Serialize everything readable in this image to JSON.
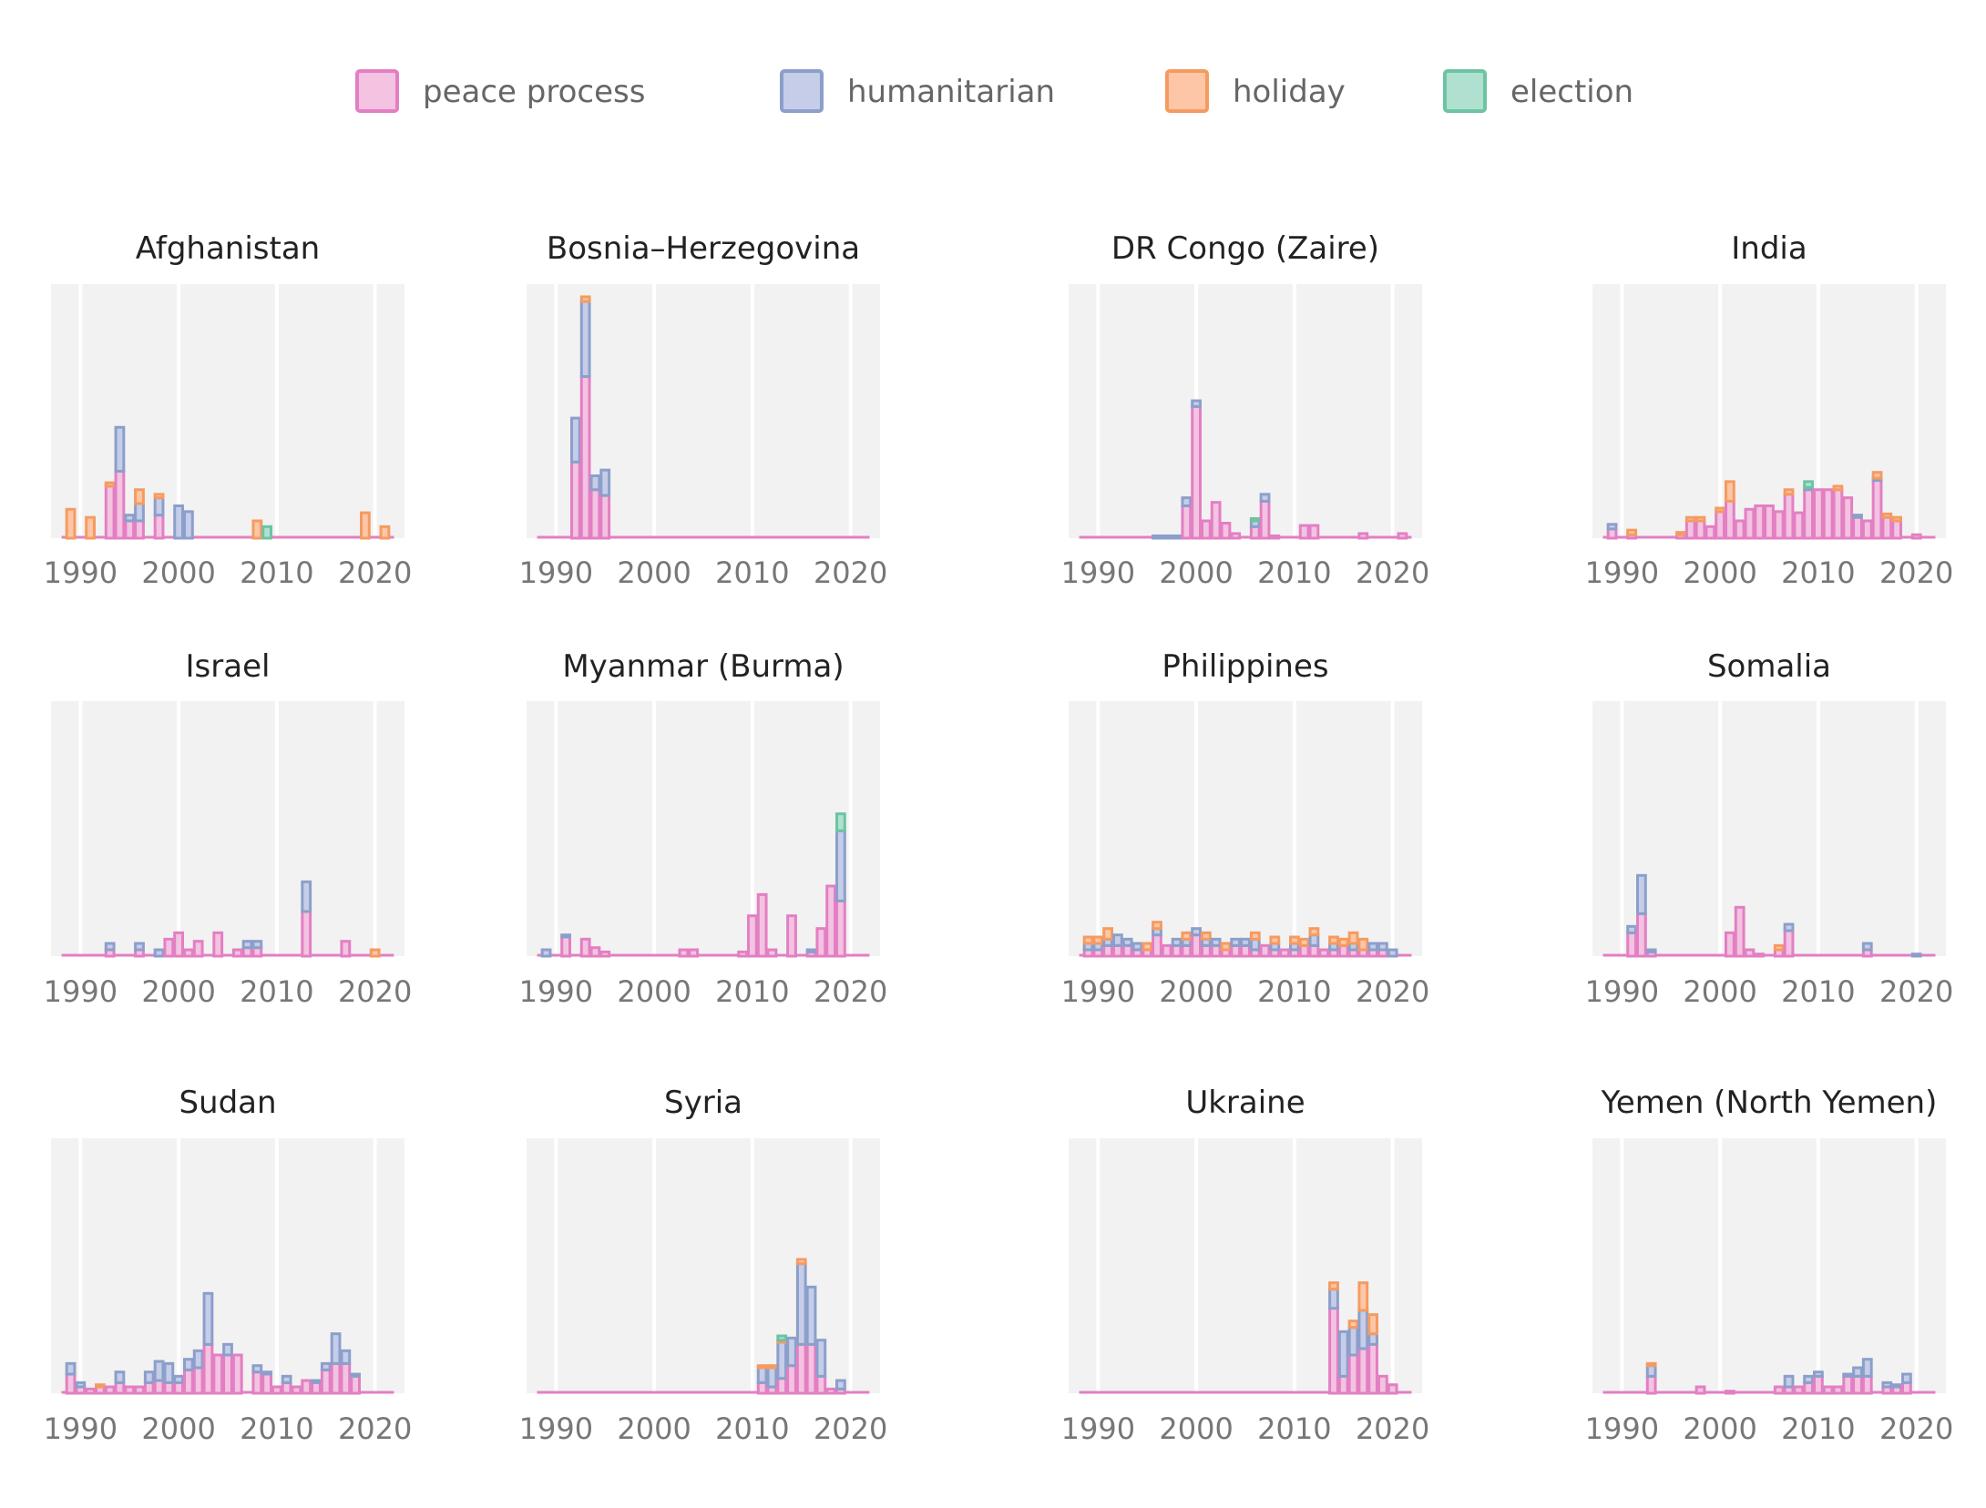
{
  "colors": {
    "peace process": {
      "fill": "#f3c3e1",
      "stroke": "#e37fc3"
    },
    "humanitarian": {
      "fill": "#c5cde8",
      "stroke": "#8c9fcb"
    },
    "holiday": {
      "fill": "#fdc6a6",
      "stroke": "#f59b61"
    },
    "election": {
      "fill": "#b0e0d0",
      "stroke": "#6cc4a2"
    },
    "panel_background": "#f2f2f2",
    "gridline": "#ffffff"
  },
  "chart_data": {
    "type": "bar",
    "stacked": true,
    "legend": {
      "placement": "top",
      "entries": [
        "peace process",
        "humanitarian",
        "holiday",
        "election"
      ]
    },
    "stack_order": [
      "peace process",
      "humanitarian",
      "holiday",
      "election"
    ],
    "x_ticks": [
      "1990",
      "2000",
      "2010",
      "2020"
    ],
    "xlim": [
      1987,
      2023
    ],
    "y_scale": "free per row",
    "grid": true,
    "panels": [
      {
        "title": "Afghanistan",
        "row": 0,
        "col": 0,
        "ymax": 22,
        "peace process": {
          "1993": 4.5,
          "1994": 5.8,
          "1995": 1.5,
          "1996": 1.5,
          "1998": 2
        },
        "humanitarian": {
          "1994": 3.8,
          "1995": 0.5,
          "1996": 1.5,
          "1998": 1.5,
          "2000": 2.8,
          "2001": 2.3
        },
        "holiday": {
          "1989": 2.5,
          "1991": 1.8,
          "1993": 0.3,
          "1996": 1.2,
          "1998": 0.3,
          "2008": 1.5,
          "2019": 2.2,
          "2021": 1
        },
        "election": {
          "2009": 1
        }
      },
      {
        "title": "Bosnia–Herzegovina",
        "row": 0,
        "col": 1,
        "ymax": 22,
        "peace process": {
          "1992": 6.6,
          "1993": 14,
          "1994": 4.2,
          "1995": 3.7
        },
        "humanitarian": {
          "1992": 3.8,
          "1993": 6.5,
          "1994": 1.2,
          "1995": 2.2
        },
        "holiday": {
          "1993": 0.4
        }
      },
      {
        "title": "DR Congo (Zaire)",
        "row": 0,
        "col": 2,
        "ymax": 22,
        "peace process": {
          "1999": 2.8,
          "2000": 11.4,
          "2001": 1.5,
          "2002": 3.1,
          "2003": 1.3,
          "2004": 0.4,
          "2006": 1,
          "2007": 3.2,
          "2008": 0.2,
          "2011": 1.1,
          "2012": 1.1,
          "2017": 0.4,
          "2021": 0.4
        },
        "humanitarian": {
          "1996": 0.2,
          "1997": 0.2,
          "1998": 0.2,
          "1999": 0.7,
          "2000": 0.5,
          "2006": 0.5,
          "2007": 0.6
        },
        "election": {
          "2006": 0.2
        }
      },
      {
        "title": "India",
        "row": 0,
        "col": 3,
        "ymax": 22,
        "peace process": {
          "1989": 0.8,
          "1991": 0.3,
          "1996": 0.3,
          "1997": 1.5,
          "1998": 1.5,
          "1999": 1,
          "2000": 2.3,
          "2001": 3.2,
          "2002": 1.5,
          "2003": 2.5,
          "2004": 2.8,
          "2005": 2.8,
          "2006": 2.3,
          "2007": 3.8,
          "2008": 2.2,
          "2009": 4.2,
          "2010": 4.2,
          "2011": 4.2,
          "2012": 4.2,
          "2013": 3.5,
          "2014": 1.8,
          "2015": 1.5,
          "2016": 5,
          "2017": 1.8,
          "2018": 1.5,
          "2020": 0.3
        },
        "humanitarian": {
          "1989": 0.4,
          "2009": 0.2,
          "2014": 0.2,
          "2016": 0.2
        },
        "holiday": {
          "1991": 0.4,
          "1996": 0.2,
          "1997": 0.3,
          "1998": 0.3,
          "2000": 0.3,
          "2001": 1.7,
          "2007": 0.4,
          "2012": 0.3,
          "2016": 0.5,
          "2017": 0.3,
          "2018": 0.3
        },
        "election": {
          "2009": 0.5
        }
      },
      {
        "title": "Israel",
        "row": 1,
        "col": 0,
        "ymax": 12,
        "peace process": {
          "1993": 0.3,
          "1996": 0.3,
          "1999": 0.8,
          "2000": 1.1,
          "2001": 0.3,
          "2002": 0.7,
          "2004": 1.1,
          "2006": 0.3,
          "2007": 0.4,
          "2008": 0.4,
          "2013": 2.1,
          "2017": 0.7
        },
        "humanitarian": {
          "1993": 0.3,
          "1996": 0.3,
          "1998": 0.3,
          "2007": 0.3,
          "2008": 0.3,
          "2013": 1.4
        },
        "holiday": {
          "2020": 0.3
        }
      },
      {
        "title": "Myanmar (Burma)",
        "row": 1,
        "col": 1,
        "ymax": 12,
        "peace process": {
          "1991": 0.9,
          "1993": 0.8,
          "1994": 0.4,
          "1995": 0.2,
          "2003": 0.3,
          "2004": 0.3,
          "2009": 0.2,
          "2010": 1.9,
          "2011": 2.9,
          "2012": 0.3,
          "2014": 1.9,
          "2016": 0.2,
          "2017": 1.3,
          "2018": 3.3,
          "2019": 2.6
        },
        "humanitarian": {
          "1989": 0.3,
          "1991": 0.1,
          "2016": 0.1,
          "2019": 3.3
        },
        "election": {
          "2019": 0.8
        }
      },
      {
        "title": "Philippines",
        "row": 1,
        "col": 2,
        "ymax": 12,
        "peace process": {
          "1989": 0.3,
          "1990": 0.3,
          "1991": 0.5,
          "1992": 0.5,
          "1993": 0.5,
          "1994": 0.3,
          "1995": 0.3,
          "1996": 1,
          "1997": 0.5,
          "1998": 0.5,
          "1999": 0.5,
          "2000": 1,
          "2001": 0.5,
          "2002": 0.5,
          "2003": 0.3,
          "2004": 0.5,
          "2005": 0.5,
          "2006": 0.3,
          "2007": 0.5,
          "2008": 0.3,
          "2009": 0.3,
          "2010": 0.3,
          "2011": 0.5,
          "2012": 0.5,
          "2013": 0.3,
          "2014": 0.3,
          "2015": 0.5,
          "2016": 0.3,
          "2017": 0.3,
          "2018": 0.3,
          "2019": 0.3
        },
        "humanitarian": {
          "1989": 0.3,
          "1990": 0.3,
          "1991": 0.3,
          "1992": 0.5,
          "1993": 0.3,
          "1994": 0.3,
          "1996": 0.3,
          "1998": 0.3,
          "1999": 0.3,
          "2000": 0.3,
          "2001": 0.3,
          "2002": 0.3,
          "2004": 0.3,
          "2005": 0.3,
          "2006": 0.5,
          "2008": 0.3,
          "2010": 0.3,
          "2012": 0.5,
          "2014": 0.3,
          "2016": 0.3,
          "2018": 0.3,
          "2019": 0.3,
          "2020": 0.3
        },
        "holiday": {
          "1989": 0.3,
          "1990": 0.3,
          "1991": 0.5,
          "1995": 0.3,
          "1996": 0.3,
          "1999": 0.3,
          "2001": 0.3,
          "2003": 0.3,
          "2006": 0.3,
          "2008": 0.3,
          "2010": 0.3,
          "2011": 0.3,
          "2012": 0.3,
          "2014": 0.3,
          "2015": 0.3,
          "2016": 0.5,
          "2017": 0.5
        }
      },
      {
        "title": "Somalia",
        "row": 1,
        "col": 3,
        "ymax": 12,
        "peace process": {
          "1991": 1.1,
          "1992": 2,
          "1993": 0.2,
          "2001": 1.1,
          "2002": 2.3,
          "2003": 0.3,
          "2004": 0.1,
          "2006": 0.3,
          "2007": 1.2,
          "2015": 0.3
        },
        "humanitarian": {
          "1991": 0.3,
          "1992": 1.8,
          "1993": 0.1,
          "2007": 0.3,
          "2015": 0.3,
          "2020": 0.1
        },
        "holiday": {
          "2006": 0.2
        }
      },
      {
        "title": "Sudan",
        "row": 2,
        "col": 0,
        "ymax": 12,
        "peace process": {
          "1989": 0.9,
          "1990": 0.3,
          "1991": 0.2,
          "1992": 0.3,
          "1993": 0.3,
          "1994": 0.5,
          "1995": 0.3,
          "1996": 0.3,
          "1997": 0.5,
          "1998": 0.6,
          "1999": 0.5,
          "2000": 0.5,
          "2001": 1.1,
          "2002": 1.2,
          "2003": 2.3,
          "2004": 1.8,
          "2005": 1.8,
          "2006": 1.8,
          "2008": 1,
          "2009": 0.9,
          "2010": 0.3,
          "2011": 0.5,
          "2012": 0.3,
          "2013": 0.6,
          "2014": 0.5,
          "2015": 1.1,
          "2016": 1.4,
          "2017": 1.4,
          "2018": 0.8
        },
        "humanitarian": {
          "1989": 0.5,
          "1990": 0.2,
          "1994": 0.5,
          "1997": 0.5,
          "1998": 0.9,
          "1999": 0.9,
          "2000": 0.3,
          "2001": 0.5,
          "2002": 0.8,
          "2003": 2.4,
          "2005": 0.5,
          "2008": 0.3,
          "2009": 0.1,
          "2011": 0.3,
          "2014": 0.1,
          "2015": 0.3,
          "2016": 1.4,
          "2017": 0.6,
          "2018": 0.1
        },
        "holiday": {
          "1992": 0.1
        }
      },
      {
        "title": "Syria",
        "row": 2,
        "col": 1,
        "ymax": 12,
        "peace process": {
          "2011": 0.5,
          "2012": 0.3,
          "2013": 0.7,
          "2014": 1.3,
          "2015": 2.3,
          "2016": 2.3,
          "2017": 0.8,
          "2018": 0.2,
          "2019": 0.2
        },
        "humanitarian": {
          "2011": 0.7,
          "2012": 0.9,
          "2013": 1.7,
          "2014": 1.3,
          "2015": 3.8,
          "2016": 2.7,
          "2017": 1.7,
          "2019": 0.4
        },
        "holiday": {
          "2011": 0.1,
          "2012": 0.1,
          "2013": 0.1,
          "2015": 0.2
        },
        "election": {
          "2013": 0.2
        }
      },
      {
        "title": "Ukraine",
        "row": 2,
        "col": 2,
        "ymax": 12,
        "peace process": {
          "2014": 4,
          "2015": 0.8,
          "2016": 1.8,
          "2017": 2.1,
          "2018": 2.3,
          "2019": 0.8,
          "2020": 0.4
        },
        "humanitarian": {
          "2014": 0.9,
          "2015": 2.1,
          "2016": 1.3,
          "2017": 1.8,
          "2018": 0.5
        },
        "holiday": {
          "2014": 0.3,
          "2016": 0.3,
          "2017": 1.3,
          "2018": 0.9
        }
      },
      {
        "title": "Yemen (North Yemen)",
        "row": 2,
        "col": 3,
        "ymax": 12,
        "peace process": {
          "1993": 0.8,
          "1998": 0.3,
          "2001": 0.1,
          "2006": 0.3,
          "2007": 0.3,
          "2008": 0.3,
          "2009": 0.5,
          "2010": 0.8,
          "2011": 0.3,
          "2012": 0.3,
          "2013": 0.8,
          "2014": 0.8,
          "2015": 0.8,
          "2017": 0.3,
          "2018": 0.3,
          "2019": 0.5
        },
        "humanitarian": {
          "1993": 0.5,
          "2007": 0.5,
          "2009": 0.3,
          "2010": 0.2,
          "2013": 0.1,
          "2014": 0.4,
          "2015": 0.8,
          "2017": 0.2,
          "2018": 0.1,
          "2019": 0.4
        },
        "holiday": {
          "1993": 0.1
        }
      }
    ]
  }
}
